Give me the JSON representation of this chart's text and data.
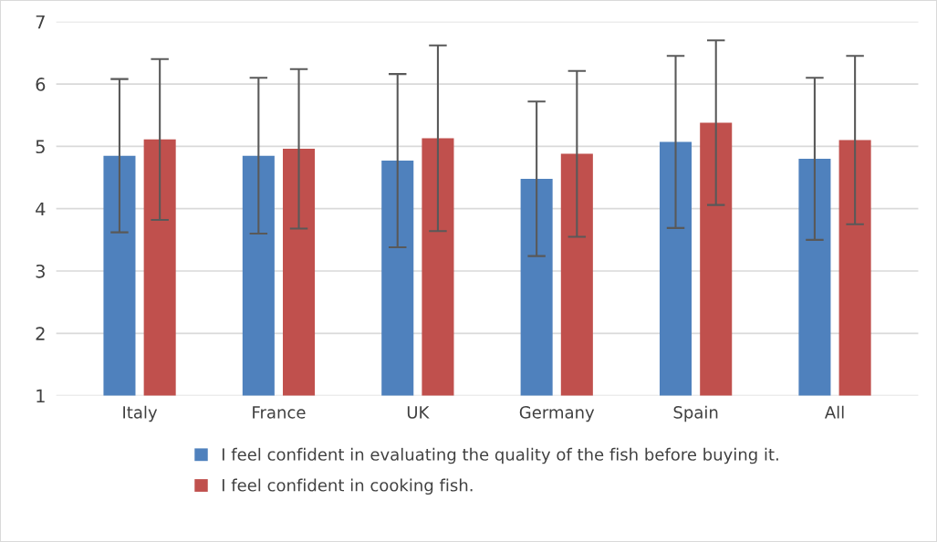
{
  "chart_data": {
    "type": "bar",
    "categories": [
      "Italy",
      "France",
      "UK",
      "Germany",
      "Spain",
      "All"
    ],
    "series": [
      {
        "name": "I feel confident in evaluating the quality of the fish before buying it.",
        "color": "#4f81bd",
        "values": [
          4.85,
          4.85,
          4.77,
          4.48,
          5.07,
          4.8
        ],
        "errors": [
          1.23,
          1.25,
          1.39,
          1.24,
          1.38,
          1.3
        ]
      },
      {
        "name": "I feel confident in cooking fish.",
        "color": "#c0504d",
        "values": [
          5.11,
          4.96,
          5.13,
          4.88,
          5.38,
          5.1
        ],
        "errors": [
          1.29,
          1.28,
          1.49,
          1.33,
          1.32,
          1.35
        ]
      }
    ],
    "ylim": [
      1,
      7
    ],
    "yticks": [
      1,
      2,
      3,
      4,
      5,
      6,
      7
    ],
    "grid": "y",
    "legend": "bottom"
  }
}
